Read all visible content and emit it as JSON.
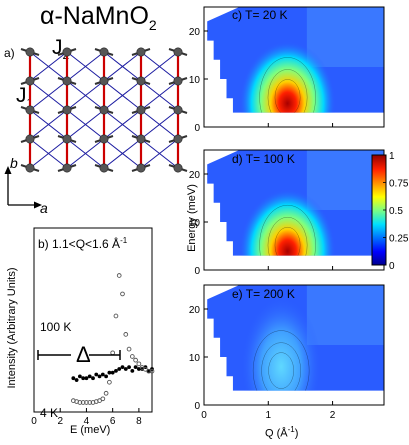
{
  "figure": {
    "title": "α-NaMnO",
    "title_sub": "2",
    "panel_a": {
      "label": "a)",
      "j1": "J",
      "j1_sub": "1",
      "j2": "J",
      "j2_sub": "2",
      "axis_b": "b",
      "axis_a": "a"
    },
    "panel_b": {
      "label": "b) 1.1<Q<1.6 Å",
      "label_sup": "-1",
      "ylabel": "Intensity (Arbitrary Units)",
      "xlabel": "E (meV)",
      "xticks": [
        "0",
        "2",
        "4",
        "6",
        "8"
      ],
      "series_100k_label": "100 K",
      "series_4k_label": "4 K",
      "gap_label": "Δ"
    },
    "panels_right": [
      {
        "label": "c) T= 20 K",
        "temperature_K": 20
      },
      {
        "label": "d) T= 100 K",
        "temperature_K": 100
      },
      {
        "label": "e) T= 200 K",
        "temperature_K": 200
      }
    ],
    "right_ylabel": "Energy (meV)",
    "right_xlabel": "Q (Å",
    "right_xlabel_sup": "-1",
    "right_xlabel_end": ")",
    "right_xticks": [
      "0",
      "1",
      "2"
    ],
    "right_yticks": [
      "0",
      "10",
      "20"
    ],
    "colorbar_ticks": [
      "1",
      "0.75",
      "0.5",
      "0.25",
      "0"
    ],
    "colors": {
      "j1_bond": "#cc0000",
      "j2_bond": "#1a1aa0",
      "map_low": "#1a3cff",
      "map_high": "#a80000"
    }
  },
  "chart_data": [
    {
      "type": "scatter",
      "title": "b) 1.1<Q<1.6 Å-1",
      "xlabel": "E (meV)",
      "ylabel": "Intensity (Arbitrary Units)",
      "xlim": [
        0,
        9
      ],
      "series": [
        {
          "name": "100 K",
          "x": [
            3.0,
            3.25,
            3.5,
            3.75,
            4.0,
            4.25,
            4.5,
            4.75,
            5.0,
            5.25,
            5.5,
            5.75,
            6.0,
            6.25,
            6.5,
            6.75,
            7.0,
            7.25,
            7.5,
            7.75,
            8.0,
            8.25,
            8.5,
            8.75,
            9.0
          ],
          "y": [
            0.2,
            0.19,
            0.21,
            0.2,
            0.2,
            0.21,
            0.2,
            0.22,
            0.21,
            0.22,
            0.21,
            0.23,
            0.23,
            0.24,
            0.25,
            0.26,
            0.25,
            0.26,
            0.24,
            0.26,
            0.25,
            0.25,
            0.26,
            0.24,
            0.25
          ]
        },
        {
          "name": "4 K",
          "x": [
            3.0,
            3.25,
            3.5,
            3.75,
            4.0,
            4.25,
            4.5,
            4.75,
            5.0,
            5.25,
            5.5,
            5.75,
            6.0,
            6.25,
            6.5,
            6.75,
            7.0,
            7.25,
            7.5,
            7.75,
            8.0,
            8.25,
            8.5,
            8.75,
            9.0
          ],
          "y": [
            0.04,
            0.035,
            0.03,
            0.03,
            0.03,
            0.03,
            0.03,
            0.035,
            0.04,
            0.05,
            0.08,
            0.14,
            0.3,
            0.5,
            0.72,
            0.62,
            0.4,
            0.32,
            0.28,
            0.26,
            0.24,
            0.22,
            0.21,
            0.2,
            0.2
          ]
        }
      ]
    },
    {
      "type": "heatmap",
      "title": "c) T= 20 K",
      "xlabel": "Q (Å-1)",
      "ylabel": "Energy (meV)",
      "xlim": [
        0,
        2.8
      ],
      "ylim": [
        0,
        25
      ],
      "colorbar": [
        0,
        1
      ],
      "peak": {
        "Q": 1.3,
        "E": 7,
        "intensity": 1.0
      }
    },
    {
      "type": "heatmap",
      "title": "d) T= 100 K",
      "xlabel": "Q (Å-1)",
      "ylabel": "Energy (meV)",
      "xlim": [
        0,
        2.8
      ],
      "ylim": [
        0,
        25
      ],
      "colorbar": [
        0,
        1
      ],
      "peak": {
        "Q": 1.3,
        "E": 6,
        "intensity": 1.0
      }
    },
    {
      "type": "heatmap",
      "title": "e) T= 200 K",
      "xlabel": "Q (Å-1)",
      "ylabel": "Energy (meV)",
      "xlim": [
        0,
        2.8
      ],
      "ylim": [
        0,
        25
      ],
      "colorbar": [
        0,
        1
      ],
      "peak": {
        "Q": 1.2,
        "E": 8,
        "intensity": 0.35
      }
    }
  ]
}
